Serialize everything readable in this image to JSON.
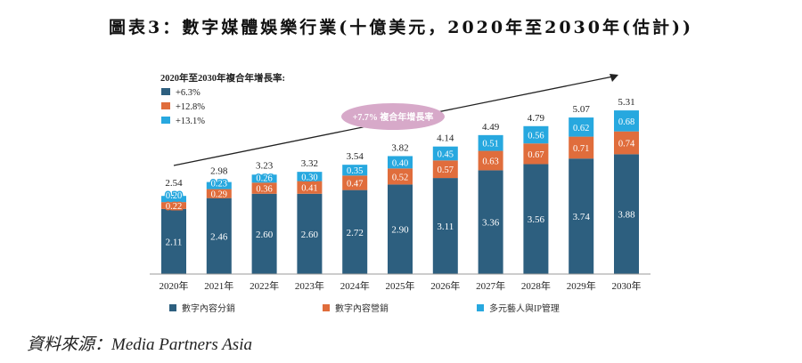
{
  "chart_data": {
    "type": "bar",
    "stacked": true,
    "title": "圖表3：數字媒體娛樂行業(十億美元，2020年至2030年(估計))",
    "categories": [
      "2020年",
      "2021年",
      "2022年",
      "2023年",
      "2024年",
      "2025年",
      "2026年",
      "2027年",
      "2028年",
      "2029年",
      "2030年"
    ],
    "series": [
      {
        "name": "數字內容分銷",
        "color": "#2d5f7f",
        "values": [
          2.11,
          2.46,
          2.6,
          2.6,
          2.72,
          2.9,
          3.11,
          3.36,
          3.56,
          3.74,
          3.88
        ]
      },
      {
        "name": "數字內容營銷",
        "color": "#e06d3c",
        "values": [
          0.22,
          0.29,
          0.36,
          0.41,
          0.47,
          0.52,
          0.57,
          0.63,
          0.67,
          0.71,
          0.74
        ]
      },
      {
        "name": "多元藝人與IP管理",
        "color": "#27a8df",
        "values": [
          0.2,
          0.23,
          0.26,
          0.3,
          0.35,
          0.4,
          0.45,
          0.51,
          0.56,
          0.62,
          0.68
        ]
      }
    ],
    "totals": [
      2.54,
      2.98,
      3.23,
      3.32,
      3.54,
      3.82,
      4.14,
      4.49,
      4.79,
      5.07,
      5.31
    ],
    "cagr_title": "2020年至2030年複合年增長率:",
    "cagr": [
      "+6.3%",
      "+12.8%",
      "+13.1%"
    ],
    "trend_label": "+7.7% 複合年增長率",
    "legend_placement": "bottom",
    "ylim": [
      0,
      5.5
    ]
  },
  "source": "資料來源：Media Partners Asia"
}
